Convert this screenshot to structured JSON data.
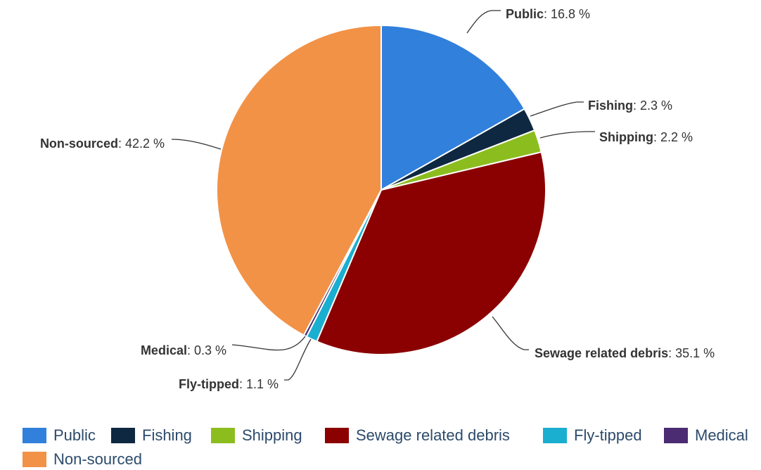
{
  "chart_data": {
    "type": "pie",
    "unit": "%",
    "slices": [
      {
        "name": "Public",
        "value": 16.8,
        "label_value": "16.8 %",
        "color": "#3180dc"
      },
      {
        "name": "Fishing",
        "value": 2.3,
        "label_value": "2.3 %",
        "color": "#0f2841"
      },
      {
        "name": "Shipping",
        "value": 2.2,
        "label_value": "2.2 %",
        "color": "#8cbd1f"
      },
      {
        "name": "Sewage related debris",
        "value": 35.1,
        "label_value": "35.1 %",
        "color": "#8b0000"
      },
      {
        "name": "Fly-tipped",
        "value": 1.1,
        "label_value": "1.1 %",
        "color": "#1aaed0"
      },
      {
        "name": "Medical",
        "value": 0.3,
        "label_value": "0.3 %",
        "color": "#4b2c73"
      },
      {
        "name": "Non-sourced",
        "value": 42.2,
        "label_value": "42.2 %",
        "color": "#f29247"
      }
    ],
    "legend": {
      "placement": "bottom",
      "items": [
        "Public",
        "Fishing",
        "Shipping",
        "Sewage related debris",
        "Fly-tipped",
        "Medical",
        "Non-sourced"
      ]
    }
  }
}
